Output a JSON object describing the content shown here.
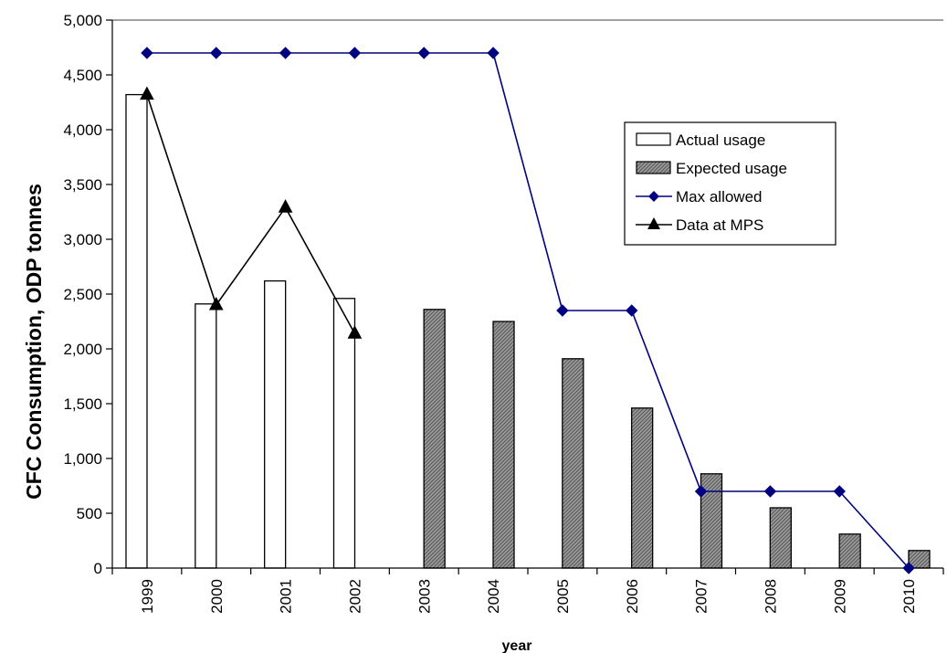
{
  "chart_data": {
    "type": "bar",
    "title": "",
    "xlabel": "year",
    "ylabel": "CFC Consumption, ODP tonnes",
    "ylim": [
      0,
      5000
    ],
    "ytick_values": [
      0,
      500,
      1000,
      1500,
      2000,
      2500,
      3000,
      3500,
      4000,
      4500,
      5000
    ],
    "ytick_labels": [
      "0",
      "500",
      "1,000",
      "1,500",
      "2,000",
      "2,500",
      "3,000",
      "3,500",
      "4,000",
      "4,500",
      "5,000"
    ],
    "categories": [
      "1999",
      "2000",
      "2001",
      "2002",
      "2003",
      "2004",
      "2005",
      "2006",
      "2007",
      "2008",
      "2009",
      "2010"
    ],
    "grid": "top line only",
    "legend_position": "right",
    "series": [
      {
        "name": "Actual usage",
        "kind": "bar",
        "fill": "#ffffff",
        "stroke": "#000000",
        "values": [
          4320,
          2410,
          2620,
          2460,
          null,
          null,
          null,
          null,
          null,
          null,
          null,
          null
        ]
      },
      {
        "name": "Expected usage",
        "kind": "bar",
        "fill": "#808080",
        "stroke": "#000000",
        "values": [
          null,
          null,
          null,
          null,
          2360,
          2250,
          1910,
          1460,
          860,
          550,
          310,
          160
        ]
      },
      {
        "name": "Max allowed",
        "kind": "line",
        "marker": "diamond",
        "color": "#000080",
        "values": [
          4700,
          4700,
          4700,
          4700,
          4700,
          4700,
          2350,
          2350,
          700,
          700,
          700,
          0
        ]
      },
      {
        "name": "Data at MPS",
        "kind": "line",
        "marker": "triangle",
        "color": "#000000",
        "values": [
          4320,
          2400,
          3290,
          2140,
          null,
          null,
          null,
          null,
          null,
          null,
          null,
          null
        ]
      }
    ]
  }
}
